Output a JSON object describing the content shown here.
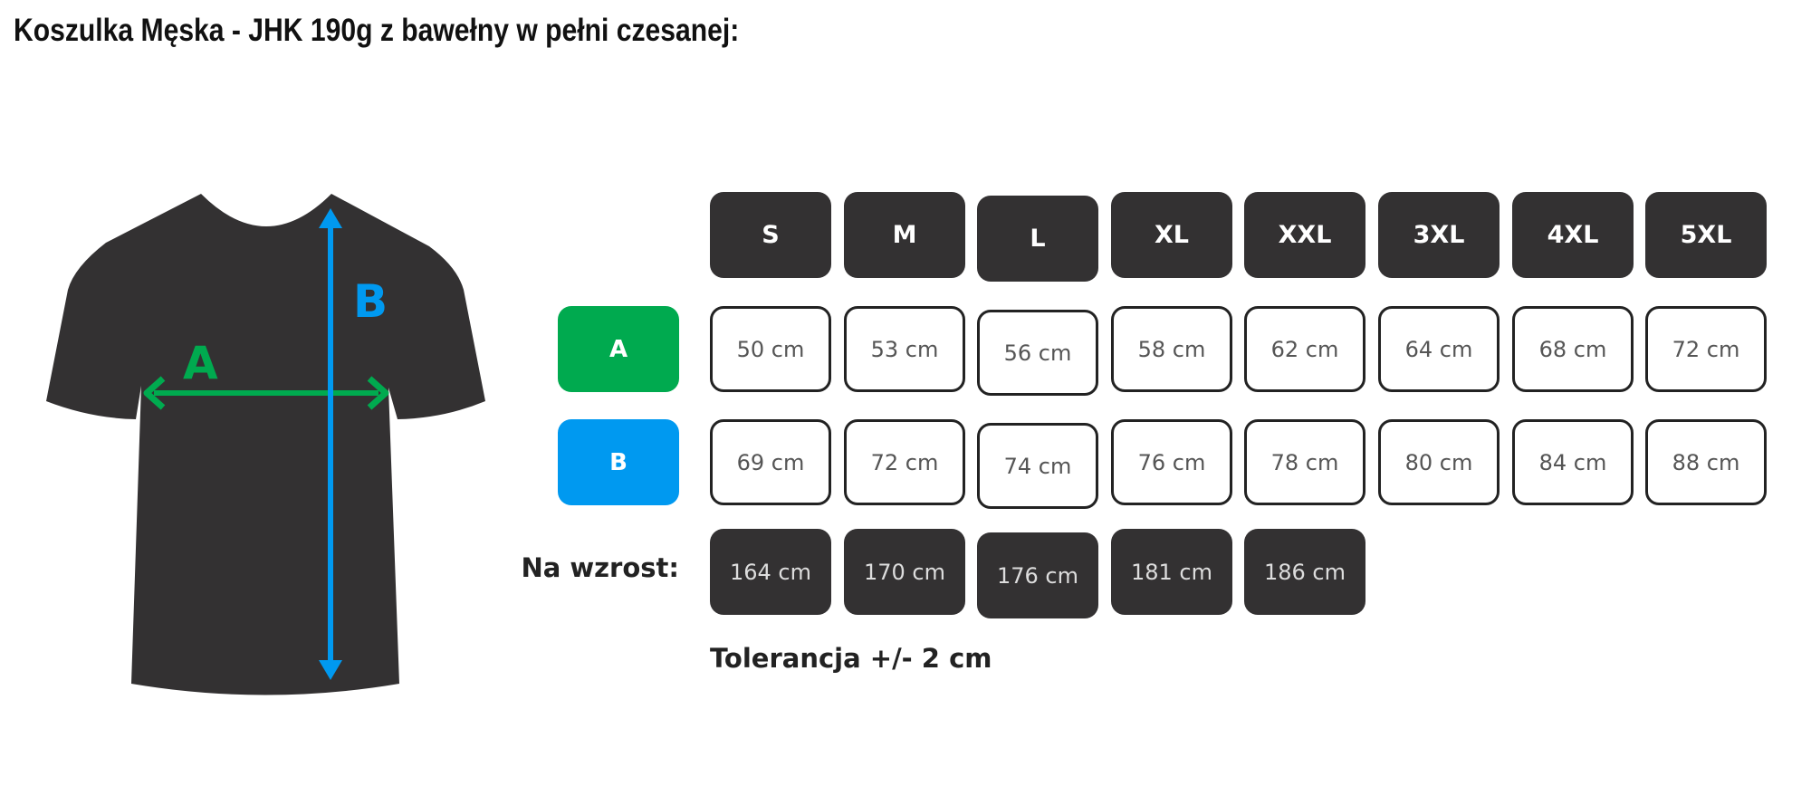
{
  "title": "Koszulka Męska - JHK 190g z bawełny w pełni czesanej:",
  "diagram": {
    "label_a": "A",
    "label_b": "B",
    "shirt_color": "#333132",
    "color_a": "#00aa4f",
    "color_b": "#0099f0"
  },
  "sizes": [
    "S",
    "M",
    "L",
    "XL",
    "XXL",
    "3XL",
    "4XL",
    "5XL"
  ],
  "rows": {
    "a": {
      "label": "A",
      "values": [
        "50 cm",
        "53 cm",
        "56 cm",
        "58 cm",
        "62 cm",
        "64 cm",
        "68 cm",
        "72 cm"
      ]
    },
    "b": {
      "label": "B",
      "values": [
        "69 cm",
        "72 cm",
        "74 cm",
        "76 cm",
        "78 cm",
        "80 cm",
        "84 cm",
        "88 cm"
      ]
    },
    "height": {
      "label": "Na wzrost:",
      "values": [
        "164 cm",
        "170 cm",
        "176 cm",
        "181 cm",
        "186 cm"
      ]
    }
  },
  "tolerance": "Tolerancja +/- 2 cm"
}
